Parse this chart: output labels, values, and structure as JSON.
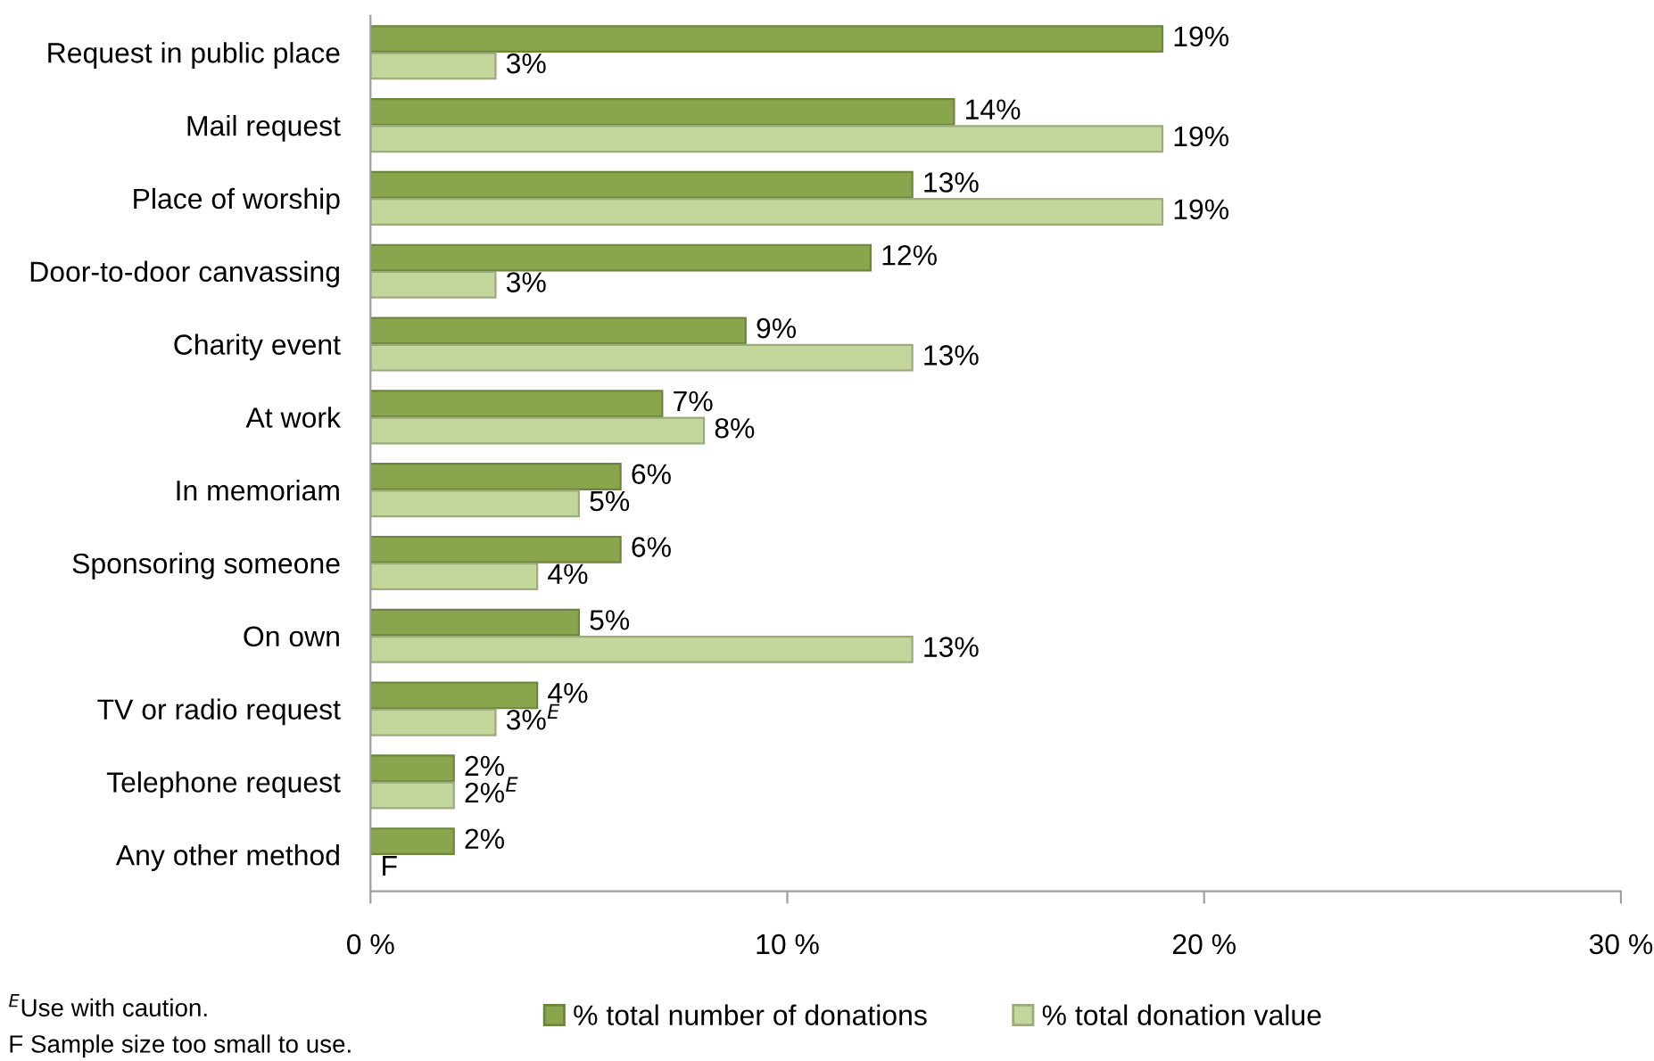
{
  "chart_data": {
    "type": "bar",
    "orientation": "horizontal",
    "categories": [
      "Request in public place",
      "Mail request",
      "Place of worship",
      "Door-to-door canvassing",
      "Charity event",
      "At work",
      "In memoriam",
      "Sponsoring someone",
      "On own",
      "TV or radio request",
      "Telephone request",
      "Any other method"
    ],
    "series": [
      {
        "name": "% total number of donations",
        "color": "#8aa64c",
        "values": [
          19,
          14,
          13,
          12,
          9,
          7,
          6,
          6,
          5,
          4,
          2,
          2
        ],
        "value_labels": [
          "19%",
          "14%",
          "13%",
          "12%",
          "9%",
          "7%",
          "6%",
          "6%",
          "5%",
          "4%",
          "2%",
          "2%"
        ]
      },
      {
        "name": "% total donation value",
        "color": "#c3d69b",
        "values": [
          3,
          19,
          19,
          3,
          13,
          8,
          5,
          4,
          13,
          3,
          2,
          null
        ],
        "value_labels": [
          "3%",
          "19%",
          "19%",
          "3%",
          "13%",
          "8%",
          "5%",
          "4%",
          "13%",
          "3%$^{E}$",
          "2%$^{E}$",
          "F"
        ]
      }
    ],
    "xlim": [
      0,
      30
    ],
    "xticks": [
      {
        "value": 0,
        "label": "0 %"
      },
      {
        "value": 10,
        "label": "10 %"
      },
      {
        "value": 20,
        "label": "20 %"
      },
      {
        "value": 30,
        "label": "30 %"
      }
    ],
    "grid": false,
    "legend": "bottom",
    "annotations": [
      "$^{E}$Use with caution.",
      "F Sample size too small to use."
    ]
  }
}
